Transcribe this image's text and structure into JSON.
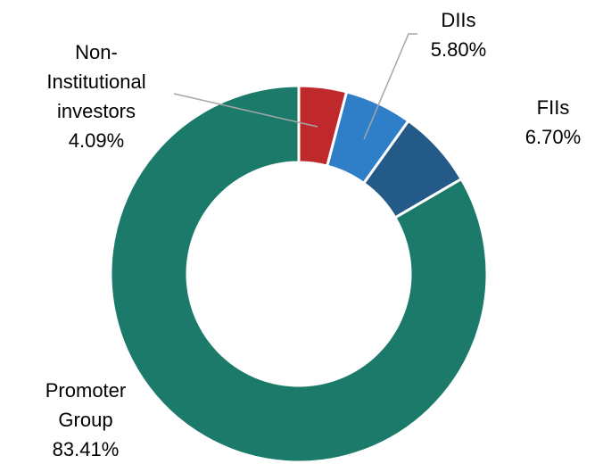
{
  "chart_data": {
    "type": "donut",
    "categories": [
      "Non-\nInstitutional\ninvestors",
      "DIIs",
      "FIIs",
      "Promoter\nGroup"
    ],
    "values": [
      4.09,
      5.8,
      6.7,
      83.41
    ],
    "value_labels": [
      "4.09%",
      "5.80%",
      "6.70%",
      "83.41%"
    ],
    "colors": [
      "#c0292b",
      "#2f7fc8",
      "#245a87",
      "#1b7a6a"
    ]
  }
}
